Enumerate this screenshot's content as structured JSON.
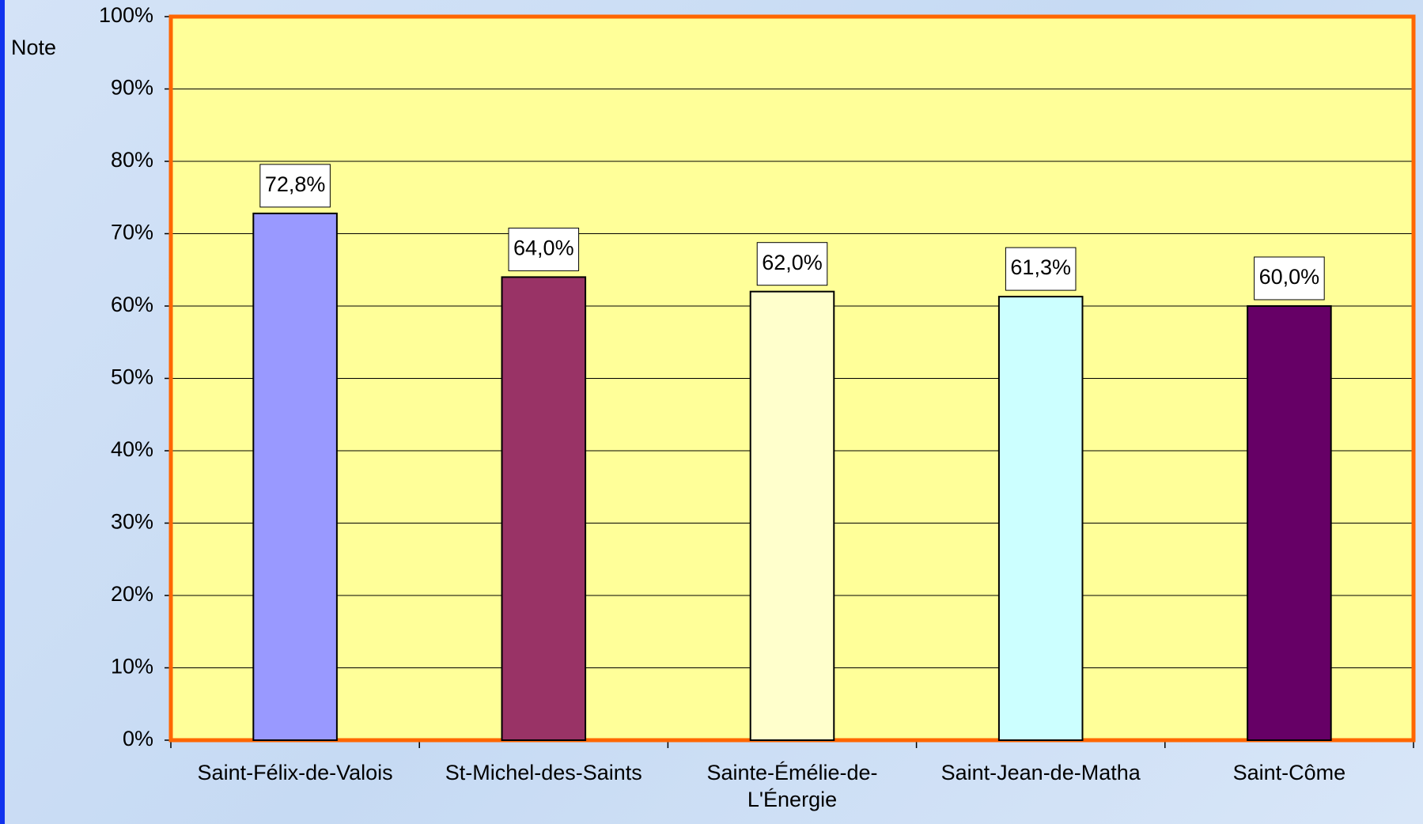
{
  "chart_data": {
    "type": "bar",
    "y_label": "Note",
    "categories": [
      "Saint-Félix-de-Valois",
      "St-Michel-des-Saints",
      "Sainte-Émélie-de-L'Énergie",
      "Saint-Jean-de-Matha",
      "Saint-Côme"
    ],
    "values": [
      72.8,
      64.0,
      62.0,
      61.3,
      60.0
    ],
    "value_labels": [
      "72,8%",
      "64,0%",
      "62,0%",
      "61,3%",
      "60,0%"
    ],
    "colors": [
      "#9999ff",
      "#993366",
      "#ffffcc",
      "#ccffff",
      "#660066"
    ],
    "ylim": [
      0,
      100
    ],
    "yticks": [
      {
        "value": 0,
        "label": "0%"
      },
      {
        "value": 10,
        "label": "10%"
      },
      {
        "value": 20,
        "label": "20%"
      },
      {
        "value": 30,
        "label": "30%"
      },
      {
        "value": 40,
        "label": "40%"
      },
      {
        "value": 50,
        "label": "50%"
      },
      {
        "value": 60,
        "label": "60%"
      },
      {
        "value": 70,
        "label": "70%"
      },
      {
        "value": 80,
        "label": "80%"
      },
      {
        "value": 90,
        "label": "90%"
      },
      {
        "value": 100,
        "label": "100%"
      }
    ],
    "grid": true
  }
}
